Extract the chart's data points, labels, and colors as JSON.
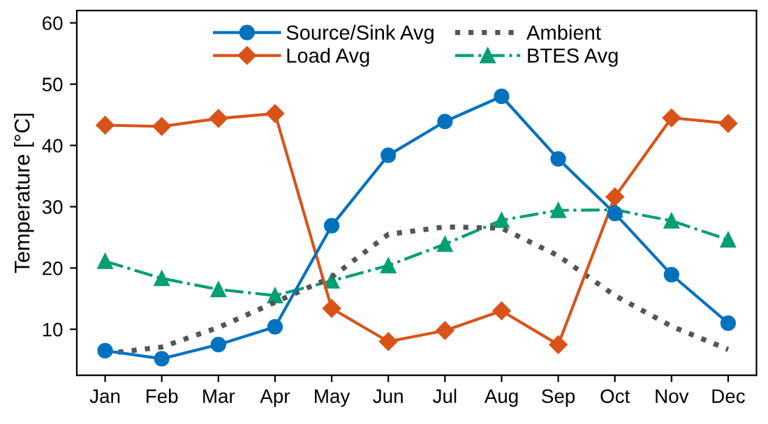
{
  "chart_data": {
    "type": "line",
    "ylabel": "Temperature [°C]",
    "categories": [
      "Jan",
      "Feb",
      "Mar",
      "Apr",
      "May",
      "Jun",
      "Jul",
      "Aug",
      "Sep",
      "Oct",
      "Nov",
      "Dec"
    ],
    "series": [
      {
        "name": "Source/Sink Avg",
        "color": "#0072bd",
        "marker": "circle",
        "line_style": "solid",
        "values": [
          6.5,
          5.2,
          7.5,
          10.4,
          26.9,
          38.4,
          43.9,
          48.0,
          37.8,
          28.9,
          18.9,
          11.0
        ]
      },
      {
        "name": "Load Avg",
        "color": "#d95319",
        "marker": "diamond",
        "line_style": "solid",
        "values": [
          43.3,
          43.1,
          44.4,
          45.2,
          13.4,
          8.0,
          9.8,
          13.0,
          7.5,
          31.6,
          44.5,
          43.6
        ]
      },
      {
        "name": "Ambient",
        "color": "#555555",
        "marker": "none",
        "line_style": "dotted",
        "values": [
          6.0,
          7.1,
          10.3,
          14.4,
          18.5,
          25.5,
          26.7,
          26.5,
          22.0,
          15.5,
          10.5,
          6.7
        ]
      },
      {
        "name": "BTES Avg",
        "color": "#009e73",
        "marker": "triangle",
        "line_style": "dashdot",
        "values": [
          21.1,
          18.3,
          16.5,
          15.5,
          17.9,
          20.4,
          23.9,
          27.8,
          29.4,
          29.5,
          27.7,
          24.6
        ]
      }
    ],
    "ylim": [
      2.5,
      62
    ],
    "yticks": [
      10,
      20,
      30,
      40,
      50,
      60
    ],
    "grid": false,
    "legend": "top"
  }
}
